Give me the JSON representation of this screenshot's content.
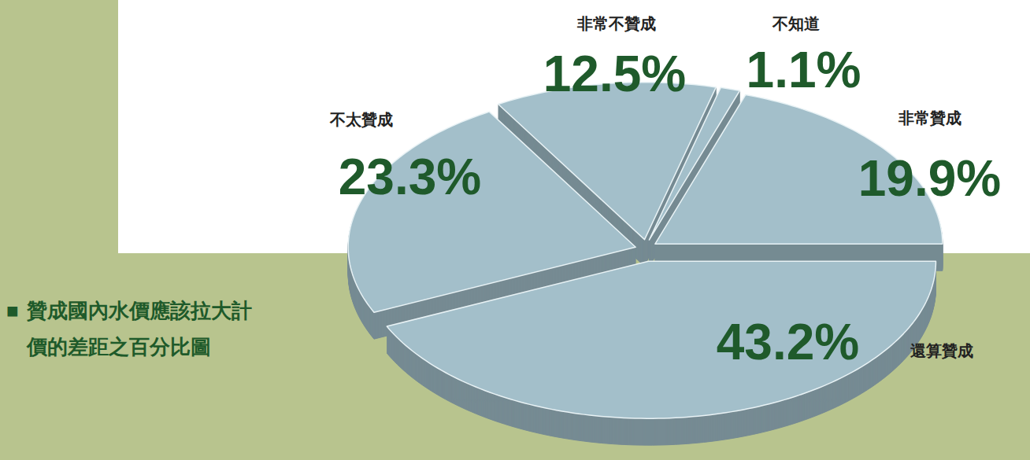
{
  "chart_data": {
    "type": "pie",
    "title": "贊成國內水價應該拉大計價的差距之百分比圖",
    "categories": [
      "非常贊成",
      "還算贊成",
      "不太贊成",
      "非常不贊成",
      "不知道"
    ],
    "values": [
      19.9,
      43.2,
      23.3,
      12.5,
      1.1
    ],
    "value_labels": [
      "19.9%",
      "43.2%",
      "23.3%",
      "12.5%",
      "1.1%"
    ],
    "data_labels": true,
    "color": "#a3bfca"
  }
}
